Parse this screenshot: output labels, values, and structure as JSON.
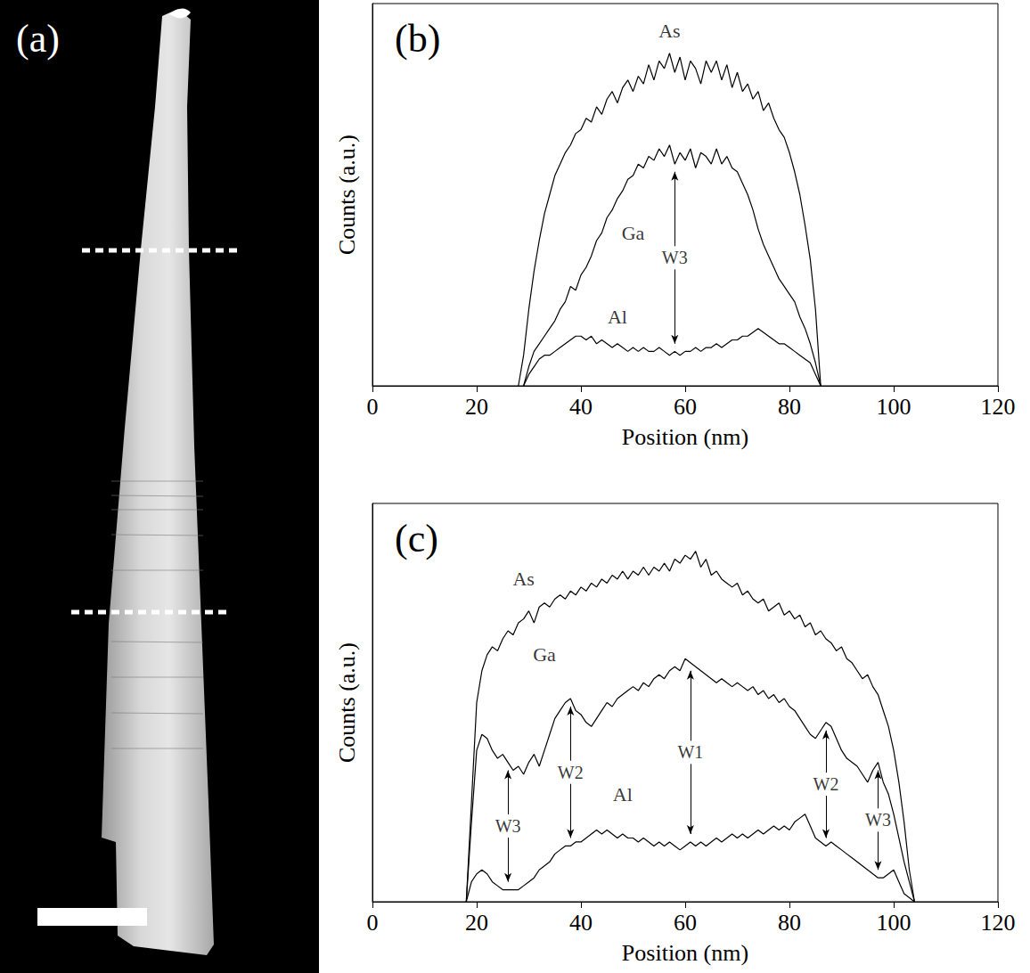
{
  "image_panel": {
    "title": "(a)"
  },
  "chart_data": [
    {
      "type": "line",
      "title": "(b)",
      "x_label": "Position (nm)",
      "y_label": "Counts (a.u.)",
      "xlim": [
        0,
        120
      ],
      "xticks": [
        0,
        20,
        40,
        60,
        80,
        100,
        120
      ],
      "ylim": [
        0,
        100
      ],
      "yticks": [],
      "tick_labels": "x",
      "grid": false,
      "series": [
        {
          "name": "As",
          "color": "#000000",
          "name_at": [
            57,
            93
          ],
          "x": [
            28,
            29,
            30,
            31,
            32,
            33,
            34,
            35,
            36,
            37,
            38,
            39,
            40,
            41,
            42,
            43,
            44,
            45,
            46,
            47,
            48,
            49,
            50,
            51,
            52,
            53,
            54,
            55,
            56,
            57,
            58,
            59,
            60,
            61,
            62,
            63,
            64,
            65,
            66,
            67,
            68,
            69,
            70,
            71,
            72,
            73,
            74,
            75,
            76,
            77,
            78,
            79,
            80,
            81,
            82,
            83,
            84,
            85,
            86
          ],
          "values": [
            0,
            8,
            20,
            30,
            38,
            45,
            50,
            55,
            58,
            61,
            63,
            66,
            67,
            70,
            69,
            73,
            71,
            75,
            77,
            74,
            78,
            80,
            77,
            81,
            79,
            84,
            80,
            85,
            83,
            87,
            82,
            86,
            80,
            85,
            83,
            79,
            85,
            82,
            85,
            80,
            84,
            78,
            82,
            77,
            79,
            75,
            77,
            72,
            74,
            70,
            67,
            65,
            61,
            56,
            50,
            42,
            33,
            20,
            0
          ]
        },
        {
          "name": "Ga",
          "color": "#000000",
          "name_at": [
            50,
            40
          ],
          "x": [
            29,
            30,
            31,
            32,
            33,
            34,
            35,
            36,
            37,
            38,
            39,
            40,
            41,
            42,
            43,
            44,
            45,
            46,
            47,
            48,
            49,
            50,
            51,
            52,
            53,
            54,
            55,
            56,
            57,
            58,
            59,
            60,
            61,
            62,
            63,
            64,
            65,
            66,
            67,
            68,
            69,
            70,
            71,
            72,
            73,
            74,
            75,
            76,
            77,
            78,
            79,
            80,
            81,
            82,
            83,
            84,
            85,
            86
          ],
          "values": [
            0,
            5,
            9,
            11,
            13,
            15,
            17,
            20,
            22,
            26,
            25,
            29,
            31,
            34,
            38,
            40,
            44,
            46,
            49,
            51,
            54,
            55,
            58,
            57,
            60,
            59,
            62,
            60,
            63,
            58,
            61,
            59,
            62,
            57,
            61,
            60,
            58,
            62,
            58,
            60,
            57,
            56,
            53,
            50,
            46,
            41,
            37,
            34,
            31,
            28,
            26,
            24,
            22,
            18,
            15,
            11,
            6,
            0
          ]
        },
        {
          "name": "Al",
          "color": "#000000",
          "name_at": [
            47,
            18
          ],
          "x": [
            29,
            30,
            31,
            32,
            33,
            34,
            35,
            36,
            37,
            38,
            39,
            40,
            41,
            42,
            43,
            44,
            45,
            46,
            47,
            48,
            49,
            50,
            51,
            52,
            53,
            54,
            55,
            56,
            57,
            58,
            59,
            60,
            61,
            62,
            63,
            64,
            65,
            66,
            67,
            68,
            69,
            70,
            71,
            72,
            73,
            74,
            75,
            76,
            77,
            78,
            79,
            80,
            81,
            82,
            83,
            84,
            85,
            86
          ],
          "values": [
            0,
            3,
            5,
            7,
            8,
            8,
            9,
            10,
            11,
            12,
            13,
            13,
            12,
            13,
            11,
            12,
            11,
            10,
            11,
            10,
            9,
            10,
            9,
            10,
            9,
            9,
            10,
            9,
            8,
            9,
            8,
            9,
            9,
            10,
            9,
            10,
            10,
            11,
            10,
            11,
            12,
            12,
            13,
            13,
            14,
            15,
            14,
            13,
            12,
            11,
            11,
            10,
            9,
            8,
            7,
            6,
            3,
            0
          ]
        }
      ],
      "annotations": [
        {
          "text": "W3",
          "x": 58,
          "arrow": [
            11,
            56
          ]
        }
      ]
    },
    {
      "type": "line",
      "title": "(c)",
      "x_label": "Position (nm)",
      "y_label": "Counts (a.u.)",
      "xlim": [
        0,
        120
      ],
      "xticks": [
        0,
        20,
        40,
        60,
        80,
        100,
        120
      ],
      "ylim": [
        0,
        100
      ],
      "yticks": [],
      "tick_labels": "x",
      "grid": false,
      "series": [
        {
          "name": "As",
          "color": "#000000",
          "name_at": [
            29,
            81
          ],
          "x": [
            18,
            19,
            20,
            21,
            22,
            23,
            24,
            25,
            26,
            27,
            28,
            29,
            30,
            31,
            32,
            33,
            34,
            35,
            36,
            37,
            38,
            39,
            40,
            41,
            42,
            43,
            44,
            45,
            46,
            47,
            48,
            49,
            50,
            51,
            52,
            53,
            54,
            55,
            56,
            57,
            58,
            59,
            60,
            61,
            62,
            63,
            64,
            65,
            66,
            67,
            68,
            69,
            70,
            71,
            72,
            73,
            74,
            75,
            76,
            77,
            78,
            79,
            80,
            81,
            82,
            83,
            84,
            85,
            86,
            87,
            88,
            89,
            90,
            91,
            92,
            93,
            94,
            95,
            96,
            97,
            98,
            99,
            100,
            101,
            102,
            103,
            104
          ],
          "values": [
            0,
            25,
            50,
            58,
            62,
            64,
            63,
            66,
            68,
            67,
            70,
            71,
            73,
            70,
            74,
            75,
            74,
            76,
            77,
            76,
            78,
            77,
            79,
            78,
            80,
            79,
            81,
            80,
            82,
            81,
            83,
            81,
            83,
            82,
            84,
            82,
            84,
            83,
            85,
            83,
            86,
            85,
            87,
            86,
            88,
            84,
            86,
            82,
            83,
            81,
            80,
            79,
            80,
            77,
            78,
            76,
            75,
            76,
            73,
            74,
            75,
            72,
            73,
            71,
            72,
            69,
            70,
            67,
            68,
            66,
            65,
            63,
            64,
            61,
            60,
            58,
            56,
            57,
            54,
            52,
            48,
            44,
            38,
            30,
            20,
            8,
            0
          ]
        },
        {
          "name": "Ga",
          "color": "#000000",
          "name_at": [
            33,
            62
          ],
          "x": [
            18,
            19,
            20,
            21,
            22,
            23,
            24,
            25,
            26,
            27,
            28,
            29,
            30,
            31,
            32,
            33,
            34,
            35,
            36,
            37,
            38,
            39,
            40,
            41,
            42,
            43,
            44,
            45,
            46,
            47,
            48,
            49,
            50,
            51,
            52,
            53,
            54,
            55,
            56,
            57,
            58,
            59,
            60,
            61,
            62,
            63,
            64,
            65,
            66,
            67,
            68,
            69,
            70,
            71,
            72,
            73,
            74,
            75,
            76,
            77,
            78,
            79,
            80,
            81,
            82,
            83,
            84,
            85,
            86,
            87,
            88,
            89,
            90,
            91,
            92,
            93,
            94,
            95,
            96,
            97,
            98,
            99,
            100,
            101,
            102,
            103,
            104
          ],
          "values": [
            0,
            20,
            38,
            42,
            41,
            38,
            36,
            37,
            35,
            33,
            34,
            32,
            35,
            37,
            34,
            38,
            42,
            46,
            48,
            50,
            51,
            48,
            47,
            45,
            44,
            46,
            48,
            50,
            49,
            51,
            52,
            53,
            54,
            53,
            55,
            54,
            56,
            57,
            56,
            58,
            59,
            58,
            61,
            60,
            59,
            58,
            57,
            56,
            55,
            56,
            55,
            54,
            55,
            54,
            53,
            54,
            52,
            53,
            51,
            52,
            50,
            51,
            49,
            48,
            46,
            44,
            42,
            41,
            43,
            45,
            44,
            41,
            38,
            36,
            35,
            34,
            32,
            30,
            33,
            35,
            30,
            27,
            22,
            16,
            10,
            5,
            0
          ]
        },
        {
          "name": "Al",
          "color": "#000000",
          "name_at": [
            48,
            27
          ],
          "x": [
            18,
            19,
            20,
            21,
            22,
            23,
            24,
            25,
            26,
            27,
            28,
            29,
            30,
            31,
            32,
            33,
            34,
            35,
            36,
            37,
            38,
            39,
            40,
            41,
            42,
            43,
            44,
            45,
            46,
            47,
            48,
            49,
            50,
            51,
            52,
            53,
            54,
            55,
            56,
            57,
            58,
            59,
            60,
            61,
            62,
            63,
            64,
            65,
            66,
            67,
            68,
            69,
            70,
            71,
            72,
            73,
            74,
            75,
            76,
            77,
            78,
            79,
            80,
            81,
            82,
            83,
            84,
            85,
            86,
            87,
            88,
            89,
            90,
            91,
            92,
            93,
            94,
            95,
            96,
            97,
            98,
            99,
            100,
            101,
            102,
            103,
            104
          ],
          "values": [
            0,
            5,
            7,
            8,
            7,
            5,
            4,
            3,
            3,
            3,
            3,
            4,
            5,
            6,
            8,
            9,
            10,
            12,
            13,
            14,
            14,
            15,
            15,
            16,
            17,
            18,
            17,
            18,
            17,
            16,
            17,
            16,
            16,
            15,
            16,
            15,
            14,
            15,
            14,
            15,
            14,
            13,
            14,
            15,
            14,
            15,
            14,
            15,
            16,
            15,
            16,
            17,
            16,
            17,
            16,
            17,
            18,
            17,
            18,
            19,
            18,
            19,
            18,
            20,
            21,
            22,
            19,
            16,
            15,
            14,
            15,
            14,
            13,
            12,
            11,
            10,
            9,
            8,
            7,
            6,
            6,
            7,
            8,
            5,
            2,
            1,
            0
          ]
        }
      ],
      "annotations": [
        {
          "text": "W3",
          "x": 26,
          "arrow": [
            5,
            33
          ]
        },
        {
          "text": "W2",
          "x": 38,
          "arrow": [
            16,
            49
          ]
        },
        {
          "text": "W1",
          "x": 61,
          "arrow": [
            17,
            58
          ]
        },
        {
          "text": "W2",
          "x": 87,
          "arrow": [
            16,
            43
          ]
        },
        {
          "text": "W3",
          "x": 97,
          "arrow": [
            8,
            33
          ]
        }
      ]
    }
  ]
}
